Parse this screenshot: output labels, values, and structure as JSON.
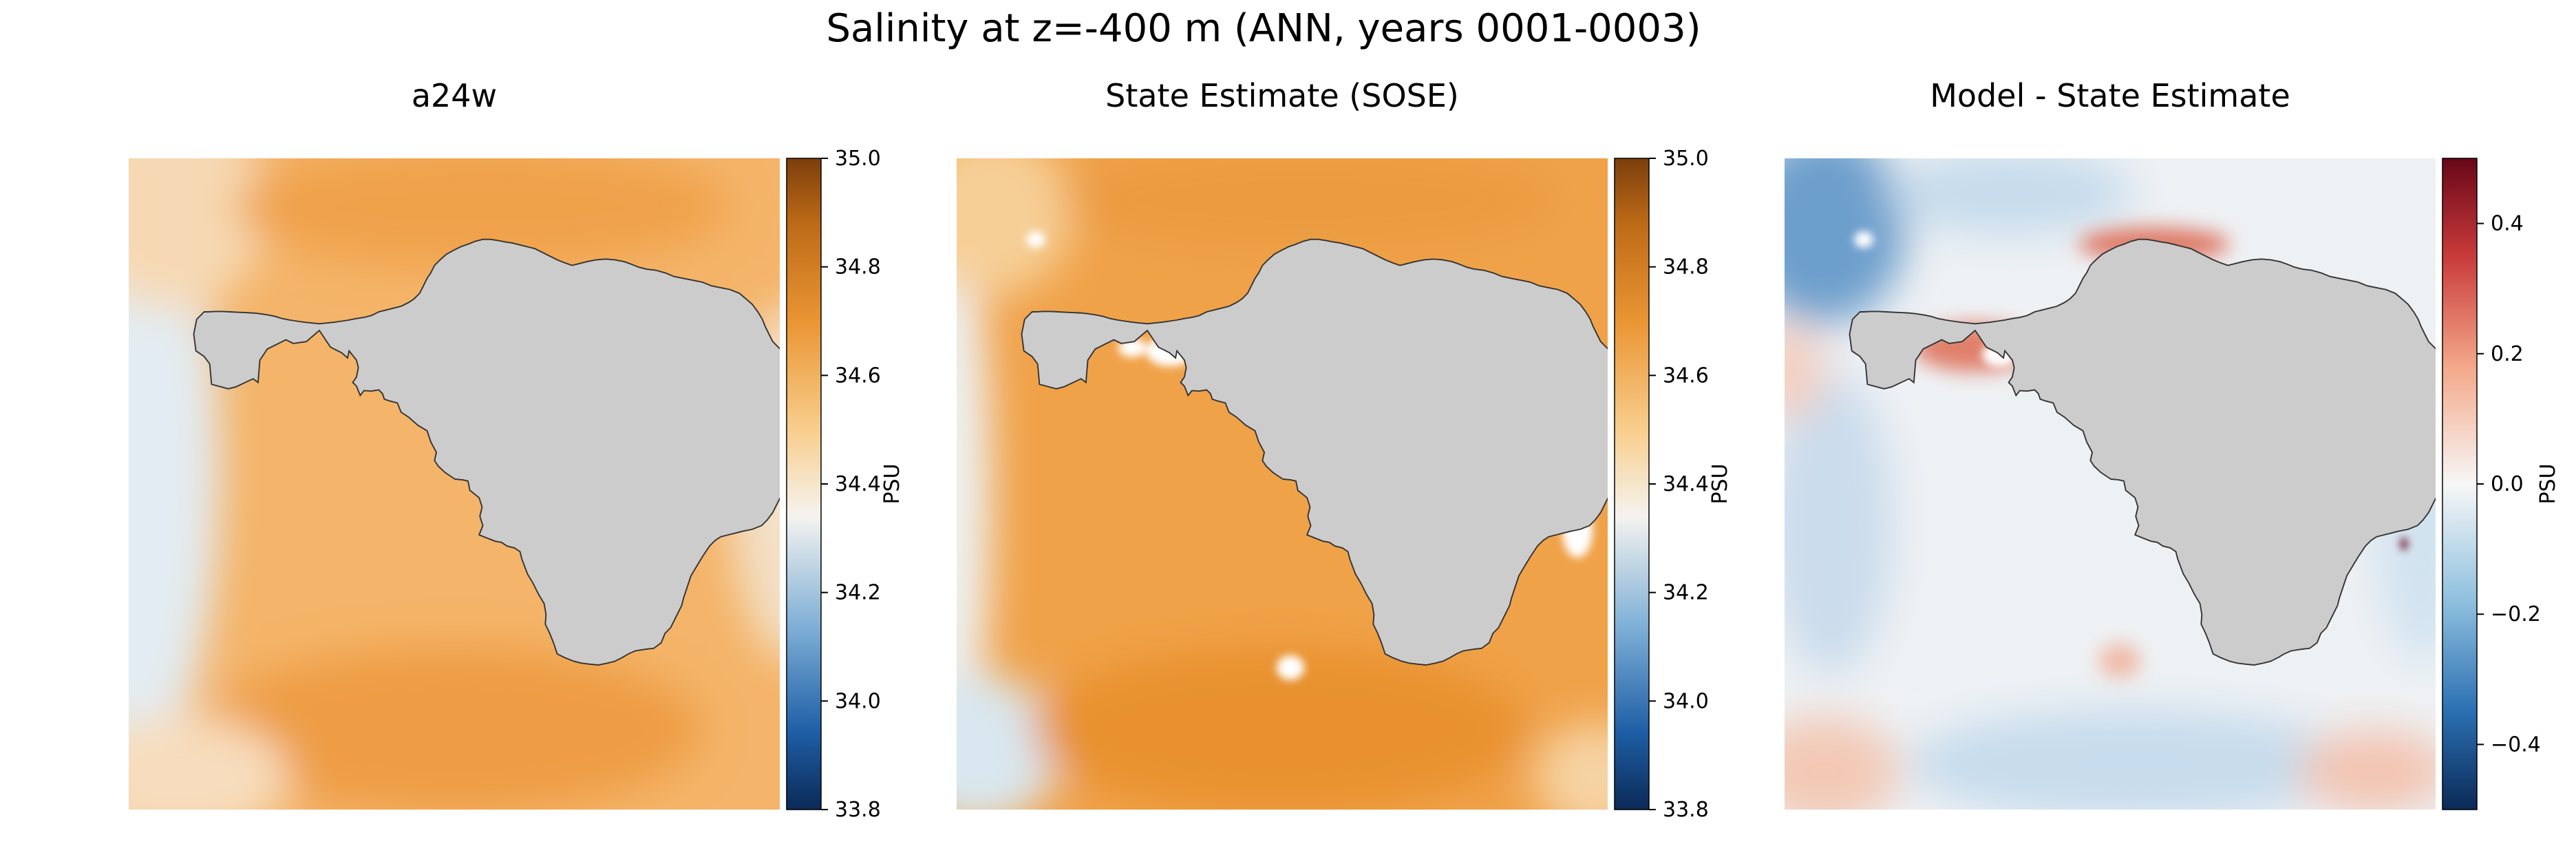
{
  "figure": {
    "title": "Salinity at z=-400 m (ANN, years 0001-0003)"
  },
  "colors": {
    "land": "#cccccc",
    "coast": "#333333",
    "ocean_base": "#f6b768",
    "ocean_salty": "#ee9a3a",
    "ocean_fresh": "#dfeaf2",
    "diff_base": "#f5f3f1"
  },
  "chart_data": [
    {
      "type": "heatmap",
      "title": "a24w",
      "colormap": "PuOr_r",
      "colorbar": {
        "label": "PSU",
        "range": [
          33.8,
          35.0
        ],
        "ticks": [
          "33.8",
          "34.0",
          "34.2",
          "34.4",
          "34.6",
          "34.8",
          "35.0"
        ]
      }
    },
    {
      "type": "heatmap",
      "title": "State Estimate (SOSE)",
      "colormap": "PuOr_r",
      "colorbar": {
        "label": "PSU",
        "range": [
          33.8,
          35.0
        ],
        "ticks": [
          "33.8",
          "34.0",
          "34.2",
          "34.4",
          "34.6",
          "34.8",
          "35.0"
        ]
      }
    },
    {
      "type": "heatmap",
      "title": "Model - State Estimate",
      "colormap": "RdBu_r",
      "colorbar": {
        "label": "PSU",
        "range": [
          -0.5,
          0.5
        ],
        "ticks": [
          "−0.4",
          "−0.2",
          "0.0",
          "0.2",
          "0.4"
        ]
      }
    }
  ]
}
